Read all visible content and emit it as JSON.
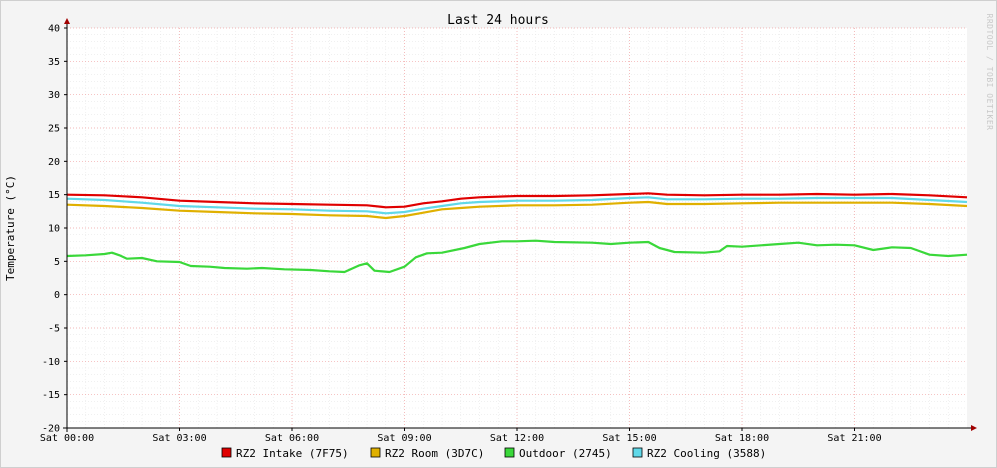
{
  "chart_data": {
    "type": "line",
    "title": "Last 24 hours",
    "ylabel": "Temperature (°C)",
    "watermark": "RRDTOOL / TOBI OETIKER",
    "ylim": [
      -20,
      40
    ],
    "xlim": [
      0,
      24
    ],
    "y_ticks": [
      40,
      35,
      30,
      25,
      20,
      15,
      10,
      5,
      0,
      -5,
      -10,
      -15,
      -20
    ],
    "x_ticks": [
      {
        "hour": 0,
        "label": "Sat 00:00"
      },
      {
        "hour": 3,
        "label": "Sat 03:00"
      },
      {
        "hour": 6,
        "label": "Sat 06:00"
      },
      {
        "hour": 9,
        "label": "Sat 09:00"
      },
      {
        "hour": 12,
        "label": "Sat 12:00"
      },
      {
        "hour": 15,
        "label": "Sat 15:00"
      },
      {
        "hour": 18,
        "label": "Sat 18:00"
      },
      {
        "hour": 21,
        "label": "Sat 21:00"
      }
    ],
    "grid": true,
    "legend_position": "bottom",
    "series": [
      {
        "name": "RZ2 Intake (7F75)",
        "color": "#e00000",
        "points": [
          [
            0,
            15.0
          ],
          [
            1,
            14.9
          ],
          [
            2,
            14.6
          ],
          [
            3,
            14.1
          ],
          [
            4,
            13.9
          ],
          [
            5,
            13.7
          ],
          [
            6,
            13.6
          ],
          [
            7,
            13.5
          ],
          [
            8,
            13.4
          ],
          [
            8.5,
            13.1
          ],
          [
            9,
            13.2
          ],
          [
            9.5,
            13.7
          ],
          [
            10,
            14.0
          ],
          [
            10.5,
            14.4
          ],
          [
            11,
            14.6
          ],
          [
            12,
            14.8
          ],
          [
            13,
            14.8
          ],
          [
            14,
            14.9
          ],
          [
            15,
            15.1
          ],
          [
            15.5,
            15.2
          ],
          [
            16,
            15.0
          ],
          [
            17,
            14.9
          ],
          [
            18,
            15.0
          ],
          [
            19,
            15.0
          ],
          [
            20,
            15.1
          ],
          [
            21,
            15.0
          ],
          [
            22,
            15.1
          ],
          [
            23,
            14.9
          ],
          [
            24,
            14.6
          ]
        ]
      },
      {
        "name": "RZ2 Room (3D7C)",
        "color": "#e0b000",
        "points": [
          [
            0,
            13.5
          ],
          [
            1,
            13.3
          ],
          [
            2,
            13.0
          ],
          [
            3,
            12.6
          ],
          [
            4,
            12.4
          ],
          [
            5,
            12.2
          ],
          [
            6,
            12.1
          ],
          [
            7,
            11.9
          ],
          [
            8,
            11.8
          ],
          [
            8.5,
            11.5
          ],
          [
            9,
            11.8
          ],
          [
            9.5,
            12.3
          ],
          [
            10,
            12.8
          ],
          [
            10.5,
            13.0
          ],
          [
            11,
            13.2
          ],
          [
            12,
            13.4
          ],
          [
            13,
            13.4
          ],
          [
            14,
            13.5
          ],
          [
            15,
            13.8
          ],
          [
            15.5,
            13.9
          ],
          [
            16,
            13.6
          ],
          [
            17,
            13.6
          ],
          [
            18,
            13.7
          ],
          [
            19,
            13.8
          ],
          [
            20,
            13.8
          ],
          [
            21,
            13.8
          ],
          [
            22,
            13.8
          ],
          [
            23,
            13.6
          ],
          [
            24,
            13.3
          ]
        ]
      },
      {
        "name": "Outdoor (2745)",
        "color": "#3ad83a",
        "points": [
          [
            0,
            5.8
          ],
          [
            0.5,
            5.9
          ],
          [
            1,
            6.1
          ],
          [
            1.2,
            6.3
          ],
          [
            1.4,
            5.9
          ],
          [
            1.6,
            5.4
          ],
          [
            2,
            5.5
          ],
          [
            2.4,
            5.0
          ],
          [
            3,
            4.9
          ],
          [
            3.3,
            4.3
          ],
          [
            3.8,
            4.2
          ],
          [
            4.2,
            4.0
          ],
          [
            4.8,
            3.9
          ],
          [
            5.2,
            4.0
          ],
          [
            5.8,
            3.8
          ],
          [
            6.5,
            3.7
          ],
          [
            7,
            3.5
          ],
          [
            7.4,
            3.4
          ],
          [
            7.8,
            4.4
          ],
          [
            8,
            4.7
          ],
          [
            8.2,
            3.6
          ],
          [
            8.6,
            3.4
          ],
          [
            9,
            4.2
          ],
          [
            9.3,
            5.6
          ],
          [
            9.6,
            6.2
          ],
          [
            10,
            6.3
          ],
          [
            10.6,
            7.0
          ],
          [
            11,
            7.6
          ],
          [
            11.6,
            8.0
          ],
          [
            12,
            8.0
          ],
          [
            12.5,
            8.1
          ],
          [
            13,
            7.9
          ],
          [
            14,
            7.8
          ],
          [
            14.5,
            7.6
          ],
          [
            15,
            7.8
          ],
          [
            15.5,
            7.9
          ],
          [
            15.8,
            7.0
          ],
          [
            16.2,
            6.4
          ],
          [
            17,
            6.3
          ],
          [
            17.4,
            6.5
          ],
          [
            17.6,
            7.3
          ],
          [
            18,
            7.2
          ],
          [
            19,
            7.6
          ],
          [
            19.5,
            7.8
          ],
          [
            20,
            7.4
          ],
          [
            20.5,
            7.5
          ],
          [
            21,
            7.4
          ],
          [
            21.5,
            6.7
          ],
          [
            22,
            7.1
          ],
          [
            22.5,
            7.0
          ],
          [
            23,
            6.0
          ],
          [
            23.5,
            5.8
          ],
          [
            24,
            6.0
          ]
        ]
      },
      {
        "name": "RZ2 Cooling (3588)",
        "color": "#60d8e8",
        "points": [
          [
            0,
            14.4
          ],
          [
            1,
            14.2
          ],
          [
            2,
            13.8
          ],
          [
            3,
            13.3
          ],
          [
            4,
            13.1
          ],
          [
            5,
            12.9
          ],
          [
            6,
            12.8
          ],
          [
            7,
            12.6
          ],
          [
            8,
            12.5
          ],
          [
            8.5,
            12.2
          ],
          [
            9,
            12.4
          ],
          [
            9.5,
            12.9
          ],
          [
            10,
            13.3
          ],
          [
            10.5,
            13.7
          ],
          [
            11,
            13.9
          ],
          [
            12,
            14.1
          ],
          [
            13,
            14.1
          ],
          [
            14,
            14.2
          ],
          [
            15,
            14.5
          ],
          [
            15.5,
            14.6
          ],
          [
            16,
            14.3
          ],
          [
            17,
            14.3
          ],
          [
            18,
            14.4
          ],
          [
            19,
            14.4
          ],
          [
            20,
            14.5
          ],
          [
            21,
            14.5
          ],
          [
            22,
            14.5
          ],
          [
            23,
            14.2
          ],
          [
            24,
            13.9
          ]
        ]
      }
    ]
  }
}
